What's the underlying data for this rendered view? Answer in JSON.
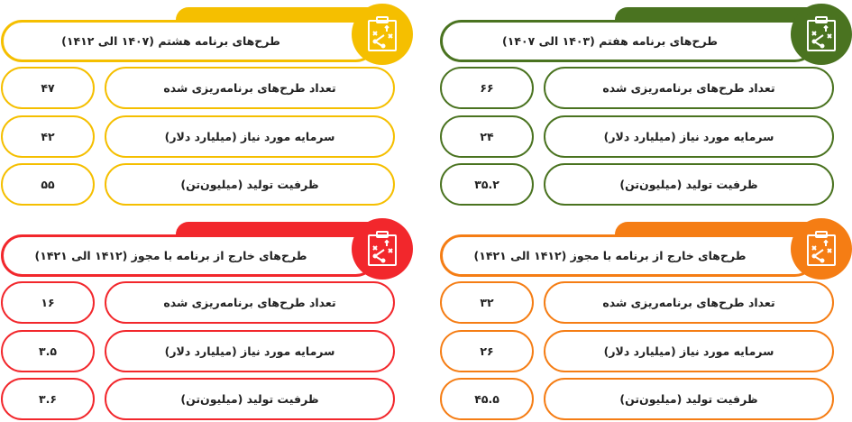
{
  "cards": [
    {
      "id": "seventh",
      "color": "#4a7320",
      "title": "طرح‌های برنامه هفتم (۱۴۰۳ الی ۱۴۰۷)",
      "icon": "strategy-clipboard-icon",
      "rows": [
        {
          "label": "تعداد طرح‌های برنامه‌ریزی شده",
          "value": "۶۶"
        },
        {
          "label": "سرمایه مورد نیاز (میلیارد دلار)",
          "value": "۲۴"
        },
        {
          "label": "ظرفیت تولید (میلیون‌تن)",
          "value": "۳۵.۲"
        }
      ]
    },
    {
      "id": "eighth",
      "color": "#f5bf00",
      "title": "طرح‌های برنامه هشتم (۱۴۰۷ الی ۱۴۱۲)",
      "icon": "strategy-clipboard-icon",
      "rows": [
        {
          "label": "تعداد طرح‌های برنامه‌ریزی شده",
          "value": "۴۷"
        },
        {
          "label": "سرمایه مورد نیاز (میلیارد دلار)",
          "value": "۴۲"
        },
        {
          "label": "ظرفیت تولید (میلیون‌تن)",
          "value": "۵۵"
        }
      ]
    },
    {
      "id": "outside-orange",
      "color": "#f57d14",
      "title": "طرح‌های خارج از برنامه با مجوز (۱۴۱۲ الی ۱۴۲۱)",
      "icon": "strategy-clipboard-icon",
      "rows": [
        {
          "label": "تعداد طرح‌های برنامه‌ریزی شده",
          "value": "۳۲"
        },
        {
          "label": "سرمایه مورد نیاز (میلیارد دلار)",
          "value": "۲۶"
        },
        {
          "label": "ظرفیت تولید (میلیون‌تن)",
          "value": "۴۵.۵"
        }
      ]
    },
    {
      "id": "outside-red",
      "color": "#f2272c",
      "title": "طرح‌های خارج از برنامه با مجوز (۱۴۱۲ الی ۱۴۲۱)",
      "icon": "strategy-clipboard-icon",
      "rows": [
        {
          "label": "تعداد طرح‌های برنامه‌ریزی شده",
          "value": "۱۶"
        },
        {
          "label": "سرمایه مورد نیاز (میلیارد دلار)",
          "value": "۳.۵"
        },
        {
          "label": "ظرفیت تولید (میلیون‌تن)",
          "value": "۳.۶"
        }
      ]
    }
  ]
}
